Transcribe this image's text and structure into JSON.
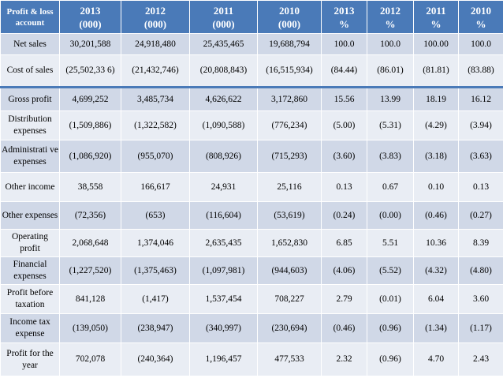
{
  "header": {
    "account": "Profit & loss account",
    "cols": [
      {
        "l1": "2013",
        "l2": "(000)"
      },
      {
        "l1": "2012",
        "l2": "(000)"
      },
      {
        "l1": "2011",
        "l2": "(000)"
      },
      {
        "l1": "2010",
        "l2": "(000)"
      },
      {
        "l1": "2013",
        "l2": "%"
      },
      {
        "l1": "2012",
        "l2": "%"
      },
      {
        "l1": "2011",
        "l2": "%"
      },
      {
        "l1": "2010",
        "l2": "%"
      }
    ]
  },
  "rows": [
    {
      "label": "Net sales",
      "cells": [
        "30,201,588",
        "24,918,480",
        "25,435,465",
        "19,688,794",
        "100.0",
        "100.0",
        "100.00",
        "100.0"
      ]
    },
    {
      "label": "Cost of sales",
      "cells": [
        "(25,502,33 6)",
        "(21,432,746)",
        "(20,808,843)",
        "(16,515,934)",
        "(84.44)",
        "(86.01)",
        "(81.81)",
        "(83.88)"
      ]
    },
    {
      "label": "Gross profit",
      "cells": [
        "4,699,252",
        "3,485,734",
        "4,626,622",
        "3,172,860",
        "15.56",
        "13.99",
        "18.19",
        "16.12"
      ]
    },
    {
      "label": "Distribution expenses",
      "cells": [
        "(1,509,886)",
        "(1,322,582)",
        "(1,090,588)",
        "(776,234)",
        "(5.00)",
        "(5.31)",
        "(4.29)",
        "(3.94)"
      ]
    },
    {
      "label": "Administrati ve expenses",
      "cells": [
        "(1,086,920)",
        "(955,070)",
        "(808,926)",
        "(715,293)",
        "(3.60)",
        "(3.83)",
        "(3.18)",
        "(3.63)"
      ]
    },
    {
      "label": "Other income",
      "cells": [
        "38,558",
        "166,617",
        "24,931",
        "25,116",
        "0.13",
        "0.67",
        "0.10",
        "0.13"
      ]
    },
    {
      "label": "Other expenses",
      "cells": [
        "(72,356)",
        "(653)",
        "(116,604)",
        "(53,619)",
        "(0.24)",
        "(0.00)",
        "(0.46)",
        "(0.27)"
      ]
    },
    {
      "label": "Operating profit",
      "cells": [
        "2,068,648",
        "1,374,046",
        "2,635,435",
        "1,652,830",
        "6.85",
        "5.51",
        "10.36",
        "8.39"
      ]
    },
    {
      "label": "Financial expenses",
      "cells": [
        "(1,227,520)",
        "(1,375,463)",
        "(1,097,981)",
        "(944,603)",
        "(4.06)",
        "(5.52)",
        "(4.32)",
        "(4.80)"
      ]
    },
    {
      "label": "Profit before taxation",
      "cells": [
        "841,128",
        "(1,417)",
        "1,537,454",
        "708,227",
        "2.79",
        "(0.01)",
        "6.04",
        "3.60"
      ]
    },
    {
      "label": "Income tax expense",
      "cells": [
        "(139,050)",
        "(238,947)",
        "(340,997)",
        "(230,694)",
        "(0.46)",
        "(0.96)",
        "(1.34)",
        "(1.17)"
      ]
    },
    {
      "label": "Profit for the year",
      "cells": [
        "702,078",
        "(240,364)",
        "1,196,457",
        "477,533",
        "2.32",
        "(0.96)",
        "4.70",
        "2.43"
      ]
    }
  ]
}
